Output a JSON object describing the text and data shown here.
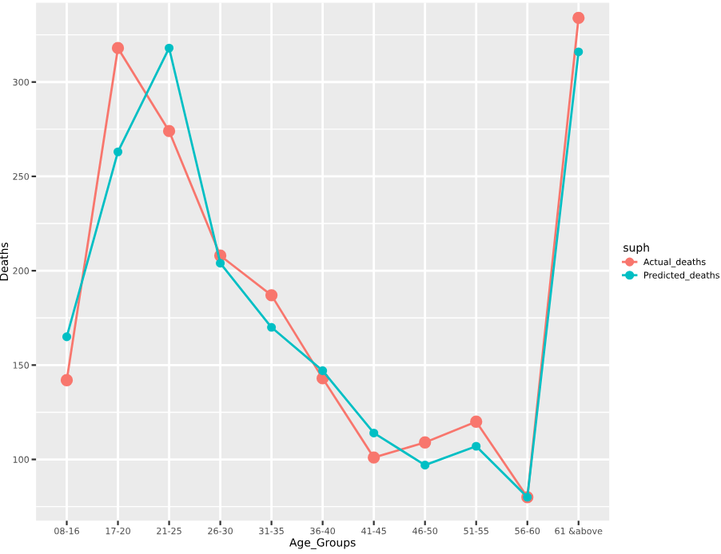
{
  "chart_data": {
    "type": "line",
    "xlabel": "Age_Groups",
    "ylabel": "Deaths",
    "legend_title": "suph",
    "categories": [
      "08-16",
      "17-20",
      "21-25",
      "26-30",
      "31-35",
      "36-40",
      "41-45",
      "46-50",
      "51-55",
      "56-60",
      "61 &above"
    ],
    "series": [
      {
        "name": "Actual_deaths",
        "color": "#f8766d",
        "values": [
          142,
          318,
          274,
          208,
          187,
          143,
          101,
          109,
          120,
          80,
          334
        ]
      },
      {
        "name": "Predicted_deaths",
        "color": "#00bfc4",
        "values": [
          165,
          263,
          318,
          204,
          170,
          147,
          114,
          97,
          107,
          80,
          316
        ]
      }
    ],
    "ylim": [
      67.5,
      342
    ],
    "yticks": [
      100,
      150,
      200,
      250,
      300
    ],
    "grid": true,
    "legend": "right",
    "marker": "circle",
    "line_style": "solid"
  }
}
